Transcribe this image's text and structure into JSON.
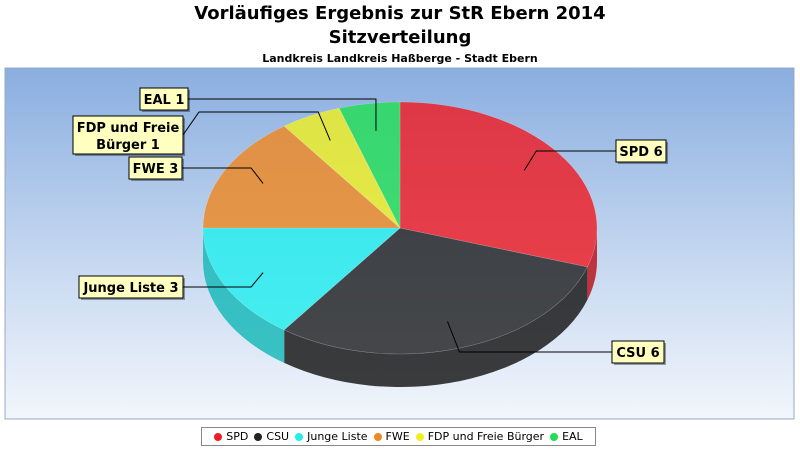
{
  "chart_data": {
    "type": "pie",
    "title_lines": [
      "Vorläufiges Ergebnis zur StR Ebern 2014",
      "Sitzverteilung"
    ],
    "subtitle": "Landkreis Landkreis Haßberge - Stadt Ebern",
    "slices": [
      {
        "name": "SPD",
        "value": 6,
        "label": "SPD 6",
        "color": "#ee1c25"
      },
      {
        "name": "CSU",
        "value": 6,
        "label": "CSU 6",
        "color": "#222222"
      },
      {
        "name": "Junge Liste",
        "value": 3,
        "label": "Junge Liste 3",
        "color": "#22eeee"
      },
      {
        "name": "FWE",
        "value": 3,
        "label": "FWE 3",
        "color": "#ee8822"
      },
      {
        "name": "FDP und Freie Bürger",
        "value": 1,
        "label": "FDP und Freie Bürger 1",
        "label_lines": [
          "FDP und Freie",
          "Bürger 1"
        ],
        "color": "#eeee22"
      },
      {
        "name": "EAL",
        "value": 1,
        "label": "EAL 1",
        "color": "#22dd55"
      }
    ],
    "legend": {
      "placement": "bottom"
    },
    "style": "3d"
  }
}
